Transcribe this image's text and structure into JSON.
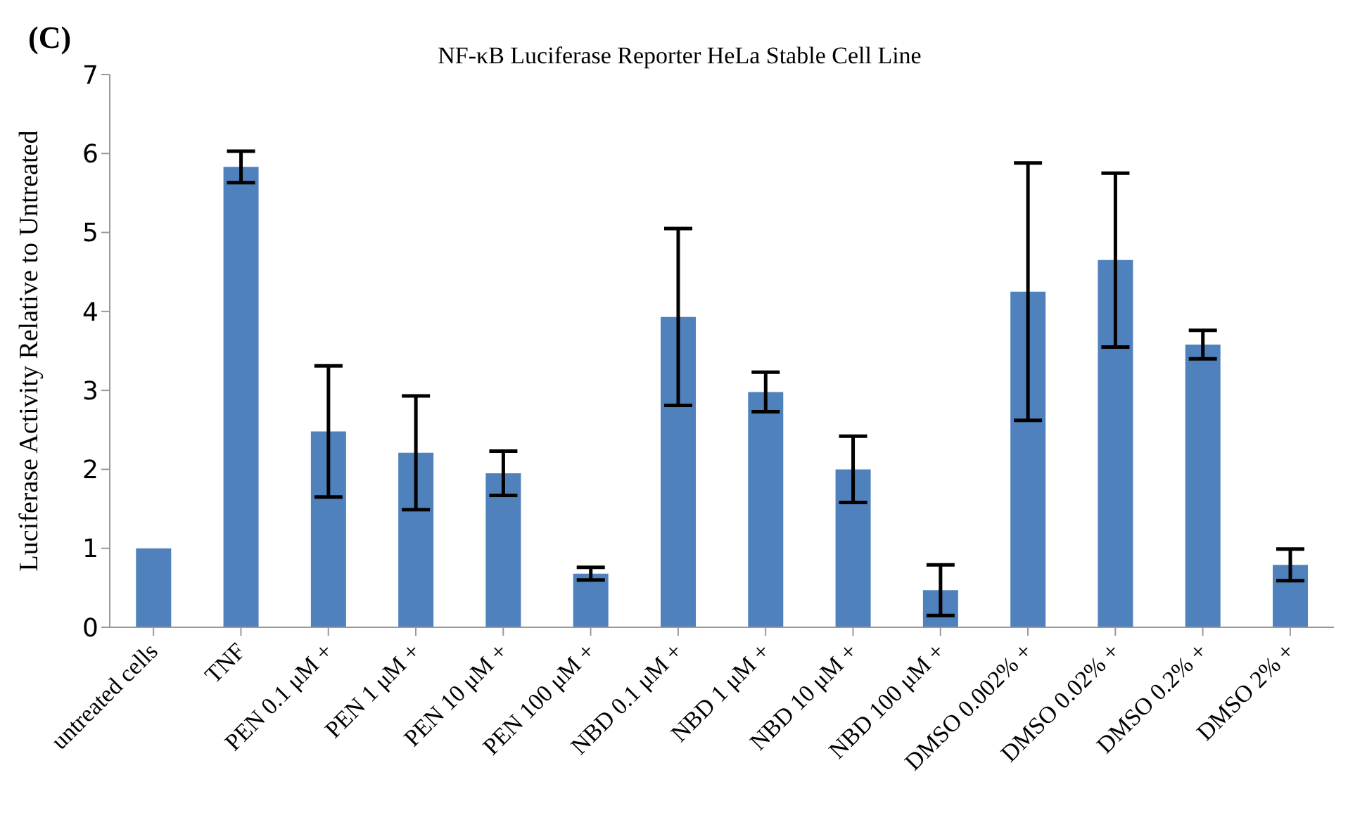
{
  "chart_data": {
    "type": "bar",
    "title": "NF-κB Luciferase Reporter HeLa Stable Cell Line",
    "ylabel": "Luciferase Activity Relative to Untreated",
    "annotations": [
      "(C)"
    ],
    "categories": [
      "untreated cells",
      "TNF",
      "PEN 0.1 μM +",
      "PEN 1 μM +",
      "PEN 10 μM +",
      "PEN 100 μM +",
      "NBD 0.1 μM +",
      "NBD 1 μM +",
      "NBD 10 μM +",
      "NBD 100 μM +",
      "DMSO 0.002% +",
      "DMSO 0.02% +",
      "DMSO 0.2% +",
      "DMSO 2% +"
    ],
    "values": [
      1.0,
      5.83,
      2.48,
      2.21,
      1.95,
      0.68,
      3.93,
      2.98,
      2.0,
      0.47,
      4.25,
      4.65,
      3.58,
      0.79
    ],
    "errors": [
      null,
      0.2,
      0.83,
      0.72,
      0.28,
      0.08,
      1.12,
      0.25,
      0.42,
      0.32,
      1.63,
      1.1,
      0.18,
      0.2
    ],
    "color": "#4f81bd",
    "ylim": [
      0,
      7
    ],
    "yticks": [
      0,
      1,
      2,
      3,
      4,
      5,
      6,
      7
    ],
    "grid": false,
    "legend": false
  }
}
